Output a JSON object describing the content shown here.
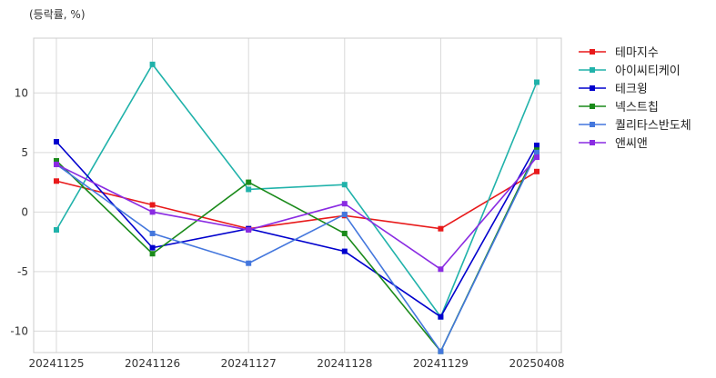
{
  "chart_data": {
    "type": "line",
    "unit_label": "(등락률, %)",
    "categories": [
      "20241125",
      "20241126",
      "20241127",
      "20241128",
      "20241129",
      "20250408"
    ],
    "yticks": [
      -10,
      -5,
      0,
      5,
      10
    ],
    "ylim": [
      -11.8,
      14.6
    ],
    "grid": true,
    "legend_position": "right",
    "series": [
      {
        "name": "테마지수",
        "color": "#e8191a",
        "values": [
          2.6,
          0.6,
          -1.4,
          -0.3,
          -1.4,
          3.4
        ]
      },
      {
        "name": "아이씨티케이",
        "color": "#20b2aa",
        "values": [
          -1.5,
          12.4,
          1.9,
          2.3,
          -8.8,
          10.9
        ]
      },
      {
        "name": "테크윙",
        "color": "#0000cd",
        "values": [
          5.9,
          -3.0,
          -1.4,
          -3.3,
          -8.8,
          5.6
        ]
      },
      {
        "name": "넥스트칩",
        "color": "#1a8a1a",
        "values": [
          4.3,
          -3.5,
          2.5,
          -1.8,
          -11.7,
          5.2
        ]
      },
      {
        "name": "퀄리타스반도체",
        "color": "#4477dd",
        "values": [
          4.0,
          -1.8,
          -4.3,
          -0.2,
          -11.7,
          5.0
        ]
      },
      {
        "name": "앤씨앤",
        "color": "#8a2be2",
        "values": [
          4.0,
          0.0,
          -1.5,
          0.7,
          -4.8,
          4.6
        ]
      }
    ]
  }
}
